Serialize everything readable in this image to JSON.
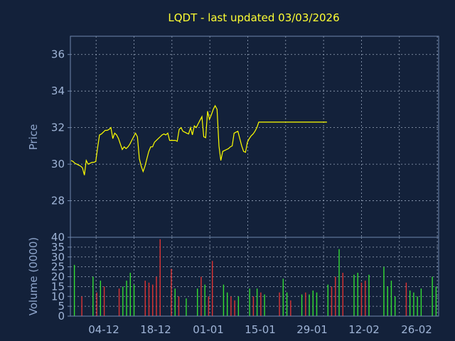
{
  "chart_data": [
    {
      "type": "line",
      "title": "LQDT - last updated 03/03/2026",
      "ylabel": "Price",
      "ylim": [
        26.0,
        37.0
      ],
      "yticks": [
        "28",
        "30",
        "32",
        "34",
        "36"
      ],
      "grid": true,
      "line_color": "#ffff00",
      "series": [
        {
          "x": [
            0,
            1,
            2,
            3,
            4,
            5,
            6,
            7,
            8,
            9,
            10,
            11,
            12,
            13,
            14,
            15,
            16,
            17,
            18,
            19,
            20,
            21,
            22,
            23,
            24,
            25,
            26,
            27,
            28,
            29,
            30,
            31,
            32,
            33,
            34,
            35,
            36,
            37,
            38,
            39,
            40,
            41,
            42,
            43,
            44,
            45,
            46,
            47,
            48,
            49,
            50,
            51,
            52,
            53,
            54,
            55,
            56,
            57,
            58,
            59,
            60,
            61,
            62,
            63,
            64,
            65,
            66,
            67,
            68,
            69,
            70,
            71,
            72,
            73,
            74,
            75,
            76,
            77,
            78,
            79,
            80,
            81,
            82,
            83,
            84,
            85,
            86,
            87,
            88,
            89,
            90,
            91,
            92,
            93,
            94,
            95,
            96,
            97,
            98,
            99,
            100,
            101,
            102,
            103,
            104,
            105,
            106,
            107,
            108,
            109,
            110,
            111,
            112,
            113,
            114,
            115,
            116,
            117,
            118,
            119,
            120,
            121,
            122,
            123,
            124,
            125,
            126,
            127,
            128,
            129,
            130,
            131,
            132,
            133,
            134,
            135
          ],
          "values": [
            30.2,
            30.15,
            30.05,
            30.0,
            29.95,
            29.9,
            29.8,
            29.4,
            30.2,
            30.0,
            30.05,
            30.1,
            30.1,
            30.15,
            30.9,
            31.6,
            31.65,
            31.75,
            31.85,
            31.85,
            31.9,
            32.0,
            31.4,
            31.7,
            31.6,
            31.4,
            31.1,
            30.8,
            30.95,
            30.85,
            30.95,
            31.1,
            31.3,
            31.5,
            31.7,
            31.5,
            30.3,
            29.9,
            29.6,
            29.9,
            30.3,
            30.7,
            30.95,
            30.95,
            31.2,
            31.3,
            31.4,
            31.5,
            31.6,
            31.65,
            31.6,
            31.7,
            31.3,
            31.3,
            31.3,
            31.3,
            31.25,
            31.9,
            32.0,
            31.8,
            31.75,
            31.7,
            31.65,
            32.0,
            31.6,
            32.1,
            32.0,
            32.2,
            32.4,
            32.6,
            31.5,
            31.45,
            32.9,
            32.45,
            32.7,
            33.0,
            33.2,
            33.0,
            31.0,
            30.2,
            30.7,
            30.75,
            30.8,
            30.85,
            30.95,
            31.0,
            31.7,
            31.75,
            31.8,
            31.4,
            31.0,
            30.7,
            30.65,
            31.2,
            31.4,
            31.55,
            31.65,
            31.8,
            32.0,
            32.3,
            32.3,
            32.3,
            32.3,
            32.3,
            32.3,
            32.3,
            32.3,
            32.3,
            32.3,
            32.3,
            32.3,
            32.3,
            32.3,
            32.3,
            32.3,
            32.3,
            32.3,
            32.3,
            32.3,
            32.3,
            32.3,
            32.3,
            32.3,
            32.3,
            32.3,
            32.3,
            32.3,
            32.3,
            32.3,
            32.3,
            32.3,
            32.3,
            32.3,
            32.3,
            32.3,
            32.3
          ]
        }
      ]
    },
    {
      "type": "bar",
      "ylabel": "Volume (0000)",
      "ylim": [
        0,
        40
      ],
      "yticks": [
        "0",
        "5",
        "10",
        "15",
        "20",
        "25",
        "30",
        "35",
        "40"
      ],
      "xticks": [
        "04-12",
        "18-12",
        "01-01",
        "15-01",
        "29-01",
        "12-02",
        "26-02"
      ],
      "grid": true,
      "up_color": "#33dd33",
      "down_color": "#dd3333",
      "bars": [
        {
          "v": 26,
          "up": true
        },
        {
          "v": 0,
          "up": true
        },
        {
          "v": 10,
          "up": false
        },
        {
          "v": 0,
          "up": true
        },
        {
          "v": 0,
          "up": true
        },
        {
          "v": 20,
          "up": true
        },
        {
          "v": 12,
          "up": false
        },
        {
          "v": 18,
          "up": true
        },
        {
          "v": 15,
          "up": false
        },
        {
          "v": 0,
          "up": true
        },
        {
          "v": 0,
          "up": true
        },
        {
          "v": 0,
          "up": true
        },
        {
          "v": 14,
          "up": false
        },
        {
          "v": 15,
          "up": true
        },
        {
          "v": 18,
          "up": true
        },
        {
          "v": 22,
          "up": true
        },
        {
          "v": 16,
          "up": true
        },
        {
          "v": 0,
          "up": true
        },
        {
          "v": 0,
          "up": true
        },
        {
          "v": 18,
          "up": false
        },
        {
          "v": 17,
          "up": false
        },
        {
          "v": 16,
          "up": false
        },
        {
          "v": 20,
          "up": false
        },
        {
          "v": 39,
          "up": false
        },
        {
          "v": 0,
          "up": true
        },
        {
          "v": 0,
          "up": true
        },
        {
          "v": 24,
          "up": false
        },
        {
          "v": 14,
          "up": true
        },
        {
          "v": 10,
          "up": false
        },
        {
          "v": 0,
          "up": true
        },
        {
          "v": 9,
          "up": true
        },
        {
          "v": 0,
          "up": true
        },
        {
          "v": 0,
          "up": true
        },
        {
          "v": 14,
          "up": true
        },
        {
          "v": 20,
          "up": false
        },
        {
          "v": 16,
          "up": true
        },
        {
          "v": 10,
          "up": false
        },
        {
          "v": 28,
          "up": false
        },
        {
          "v": 0,
          "up": true
        },
        {
          "v": 0,
          "up": true
        },
        {
          "v": 16,
          "up": true
        },
        {
          "v": 12,
          "up": true
        },
        {
          "v": 10,
          "up": false
        },
        {
          "v": 8,
          "up": false
        },
        {
          "v": 10,
          "up": true
        },
        {
          "v": 0,
          "up": true
        },
        {
          "v": 0,
          "up": true
        },
        {
          "v": 14,
          "up": true
        },
        {
          "v": 10,
          "up": false
        },
        {
          "v": 14,
          "up": true
        },
        {
          "v": 12,
          "up": false
        },
        {
          "v": 11,
          "up": true
        },
        {
          "v": 0,
          "up": true
        },
        {
          "v": 0,
          "up": true
        },
        {
          "v": 0,
          "up": true
        },
        {
          "v": 12,
          "up": false
        },
        {
          "v": 19,
          "up": true
        },
        {
          "v": 12,
          "up": true
        },
        {
          "v": 8,
          "up": false
        },
        {
          "v": 0,
          "up": true
        },
        {
          "v": 0,
          "up": true
        },
        {
          "v": 11,
          "up": true
        },
        {
          "v": 12,
          "up": false
        },
        {
          "v": 11,
          "up": true
        },
        {
          "v": 13,
          "up": true
        },
        {
          "v": 12,
          "up": true
        },
        {
          "v": 0,
          "up": true
        },
        {
          "v": 0,
          "up": true
        },
        {
          "v": 16,
          "up": true
        },
        {
          "v": 15,
          "up": false
        },
        {
          "v": 20,
          "up": false
        },
        {
          "v": 34,
          "up": true
        },
        {
          "v": 22,
          "up": false
        },
        {
          "v": 0,
          "up": true
        },
        {
          "v": 0,
          "up": true
        },
        {
          "v": 21,
          "up": true
        },
        {
          "v": 22,
          "up": true
        },
        {
          "v": 17,
          "up": false
        },
        {
          "v": 18,
          "up": false
        },
        {
          "v": 21,
          "up": true
        },
        {
          "v": 0,
          "up": true
        },
        {
          "v": 0,
          "up": true
        },
        {
          "v": 0,
          "up": true
        },
        {
          "v": 25,
          "up": true
        },
        {
          "v": 15,
          "up": true
        },
        {
          "v": 18,
          "up": true
        },
        {
          "v": 10,
          "up": true
        },
        {
          "v": 0,
          "up": true
        },
        {
          "v": 0,
          "up": true
        },
        {
          "v": 17,
          "up": false
        },
        {
          "v": 13,
          "up": true
        },
        {
          "v": 12,
          "up": true
        },
        {
          "v": 10,
          "up": true
        },
        {
          "v": 14,
          "up": true
        },
        {
          "v": 0,
          "up": true
        },
        {
          "v": 0,
          "up": true
        },
        {
          "v": 20,
          "up": true
        },
        {
          "v": 15,
          "up": true
        }
      ]
    }
  ]
}
